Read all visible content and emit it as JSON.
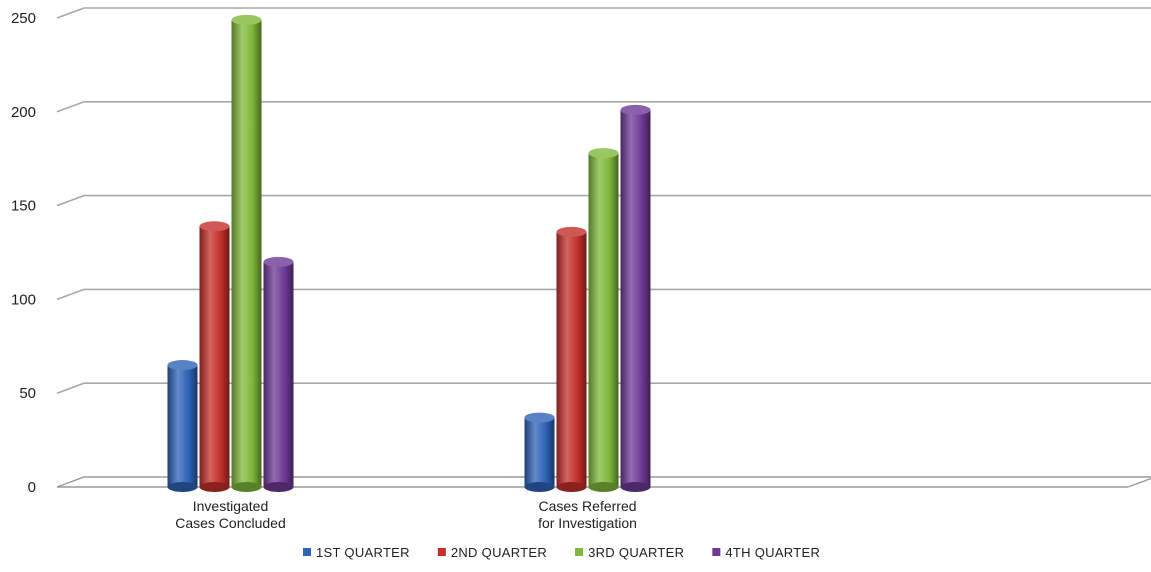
{
  "chart_data": {
    "type": "bar",
    "title": "",
    "xlabel": "",
    "ylabel": "",
    "ylim": [
      0,
      250
    ],
    "yticks": [
      0,
      50,
      100,
      150,
      200,
      250
    ],
    "grid": true,
    "legend_position": "bottom",
    "categories": [
      [
        "Investigated",
        "Cases Concluded"
      ],
      [
        "Cases Referred",
        "for Investigation"
      ],
      [
        "",
        ""
      ]
    ],
    "series": [
      {
        "name": "1ST QUARTER",
        "color": "#2e63b8",
        "values": [
          65,
          37,
          null
        ]
      },
      {
        "name": "2ND QUARTER",
        "color": "#c4302b",
        "values": [
          139,
          136,
          null
        ]
      },
      {
        "name": "3RD QUARTER",
        "color": "#7fb83a",
        "values": [
          249,
          178,
          null
        ]
      },
      {
        "name": "4TH QUARTER",
        "color": "#6e3a96",
        "values": [
          120,
          201,
          null
        ]
      }
    ]
  }
}
